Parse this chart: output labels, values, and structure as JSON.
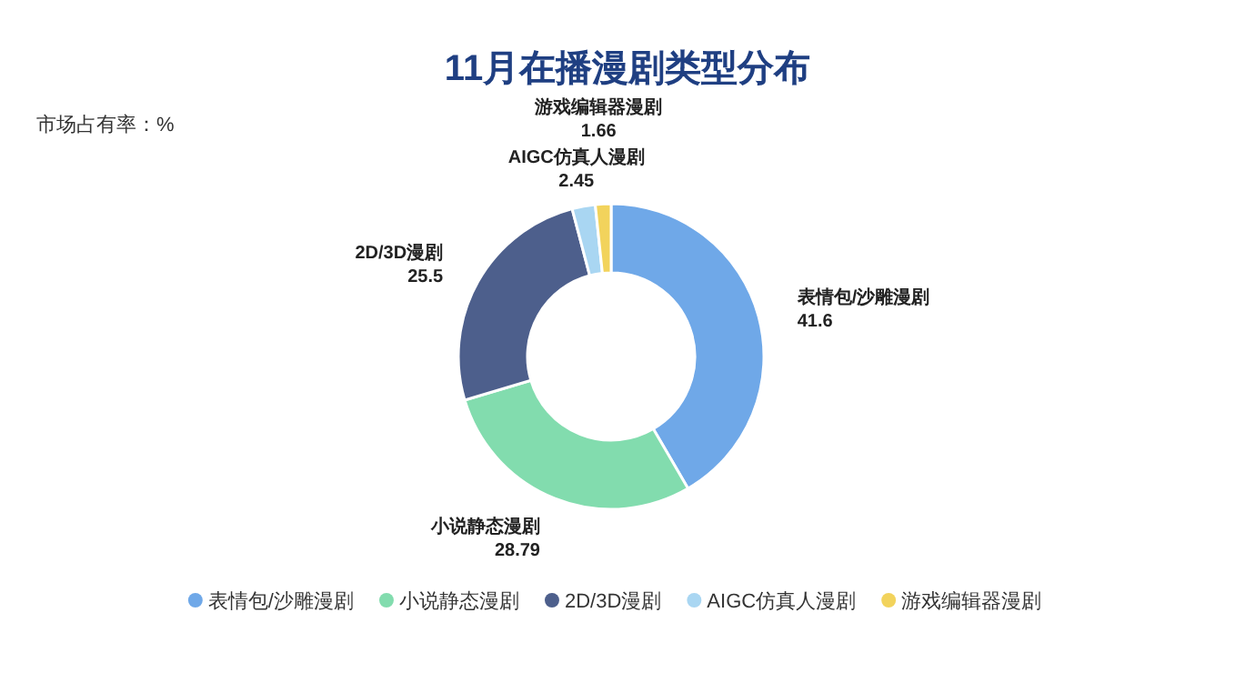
{
  "chart_data": {
    "type": "donut",
    "title": "11月在播漫剧类型分布",
    "subtitle": "市场占有率：%",
    "categories": [
      "表情包/沙雕漫剧",
      "小说静态漫剧",
      "2D/3D漫剧",
      "AIGC仿真人漫剧",
      "游戏编辑器漫剧"
    ],
    "values": [
      41.6,
      28.79,
      25.5,
      2.45,
      1.66
    ],
    "colors": [
      "#6fa8e8",
      "#82dcae",
      "#4d5f8c",
      "#a9d6f2",
      "#f2d35c"
    ],
    "data_labels": true,
    "legend": "bottom"
  }
}
